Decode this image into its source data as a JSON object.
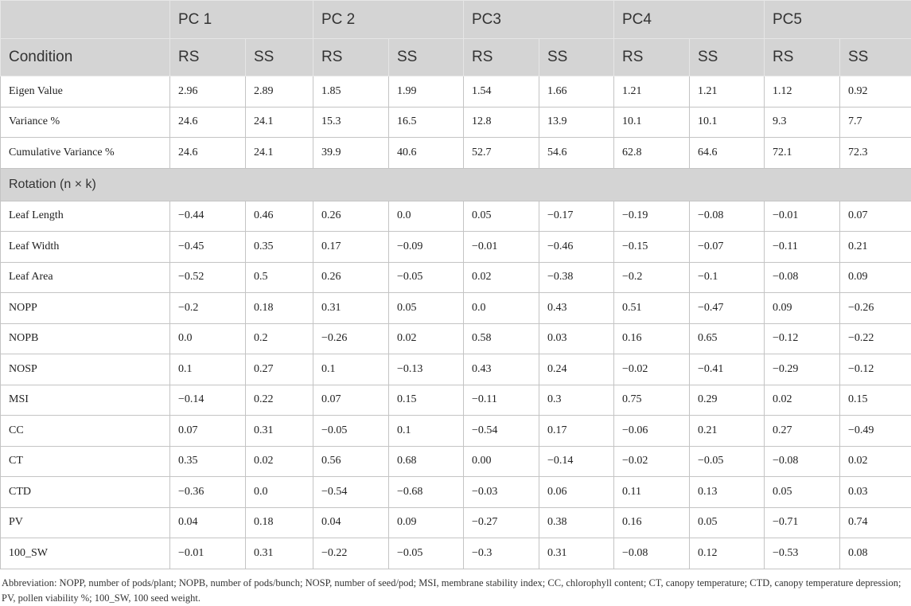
{
  "table": {
    "pcs": [
      "PC 1",
      "PC 2",
      "PC3",
      "PC4",
      "PC5"
    ],
    "condition": "Condition",
    "subheaders": [
      "RS",
      "SS",
      "RS",
      "SS",
      "RS",
      "SS",
      "RS",
      "SS",
      "RS",
      "SS"
    ],
    "rows": [
      [
        "Eigen Value",
        "2.96",
        "2.89",
        "1.85",
        "1.99",
        "1.54",
        "1.66",
        "1.21",
        "1.21",
        "1.12",
        "0.92"
      ],
      [
        "Variance %",
        "24.6",
        "24.1",
        "15.3",
        "16.5",
        "12.8",
        "13.9",
        "10.1",
        "10.1",
        "9.3",
        "7.7"
      ],
      [
        "Cumulative Variance %",
        "24.6",
        "24.1",
        "39.9",
        "40.6",
        "52.7",
        "54.6",
        "62.8",
        "64.6",
        "72.1",
        "72.3"
      ]
    ],
    "section": "Rotation (n × k)",
    "rotation_rows": [
      [
        "Leaf Length",
        "−0.44",
        "0.46",
        "0.26",
        "0.0",
        "0.05",
        "−0.17",
        "−0.19",
        "−0.08",
        "−0.01",
        "0.07"
      ],
      [
        "Leaf Width",
        "−0.45",
        "0.35",
        "0.17",
        "−0.09",
        "−0.01",
        "−0.46",
        "−0.15",
        "−0.07",
        "−0.11",
        "0.21"
      ],
      [
        "Leaf Area",
        "−0.52",
        "0.5",
        "0.26",
        "−0.05",
        "0.02",
        "−0.38",
        "−0.2",
        "−0.1",
        "−0.08",
        "0.09"
      ],
      [
        "NOPP",
        "−0.2",
        "0.18",
        "0.31",
        "0.05",
        "0.0",
        "0.43",
        "0.51",
        "−0.47",
        "0.09",
        "−0.26"
      ],
      [
        "NOPB",
        "0.0",
        "0.2",
        "−0.26",
        "0.02",
        "0.58",
        "0.03",
        "0.16",
        "0.65",
        "−0.12",
        "−0.22"
      ],
      [
        "NOSP",
        "0.1",
        "0.27",
        "0.1",
        "−0.13",
        "0.43",
        "0.24",
        "−0.02",
        "−0.41",
        "−0.29",
        "−0.12"
      ],
      [
        "MSI",
        "−0.14",
        "0.22",
        "0.07",
        "0.15",
        "−0.11",
        "0.3",
        "0.75",
        "0.29",
        "0.02",
        "0.15"
      ],
      [
        "CC",
        "0.07",
        "0.31",
        "−0.05",
        "0.1",
        "−0.54",
        "0.17",
        "−0.06",
        "0.21",
        "0.27",
        "−0.49"
      ],
      [
        "CT",
        "0.35",
        "0.02",
        "0.56",
        "0.68",
        "0.00",
        "−0.14",
        "−0.02",
        "−0.05",
        "−0.08",
        "0.02"
      ],
      [
        "CTD",
        "−0.36",
        "0.0",
        "−0.54",
        "−0.68",
        "−0.03",
        "0.06",
        "0.11",
        "0.13",
        "0.05",
        "0.03"
      ],
      [
        "PV",
        "0.04",
        "0.18",
        "0.04",
        "0.09",
        "−0.27",
        "0.38",
        "0.16",
        "0.05",
        "−0.71",
        "0.74"
      ],
      [
        "100_SW",
        "−0.01",
        "0.31",
        "−0.22",
        "−0.05",
        "−0.3",
        "0.31",
        "−0.08",
        "0.12",
        "−0.53",
        "0.08"
      ]
    ]
  },
  "footnote": "Abbreviation: NOPP, number of pods/plant; NOPB, number of pods/bunch; NOSP, number of seed/pod; MSI, membrane stability index; CC, chlorophyll content; CT, canopy temperature; CTD, canopy temperature depression; PV, pollen viability %; 100_SW, 100 seed weight."
}
